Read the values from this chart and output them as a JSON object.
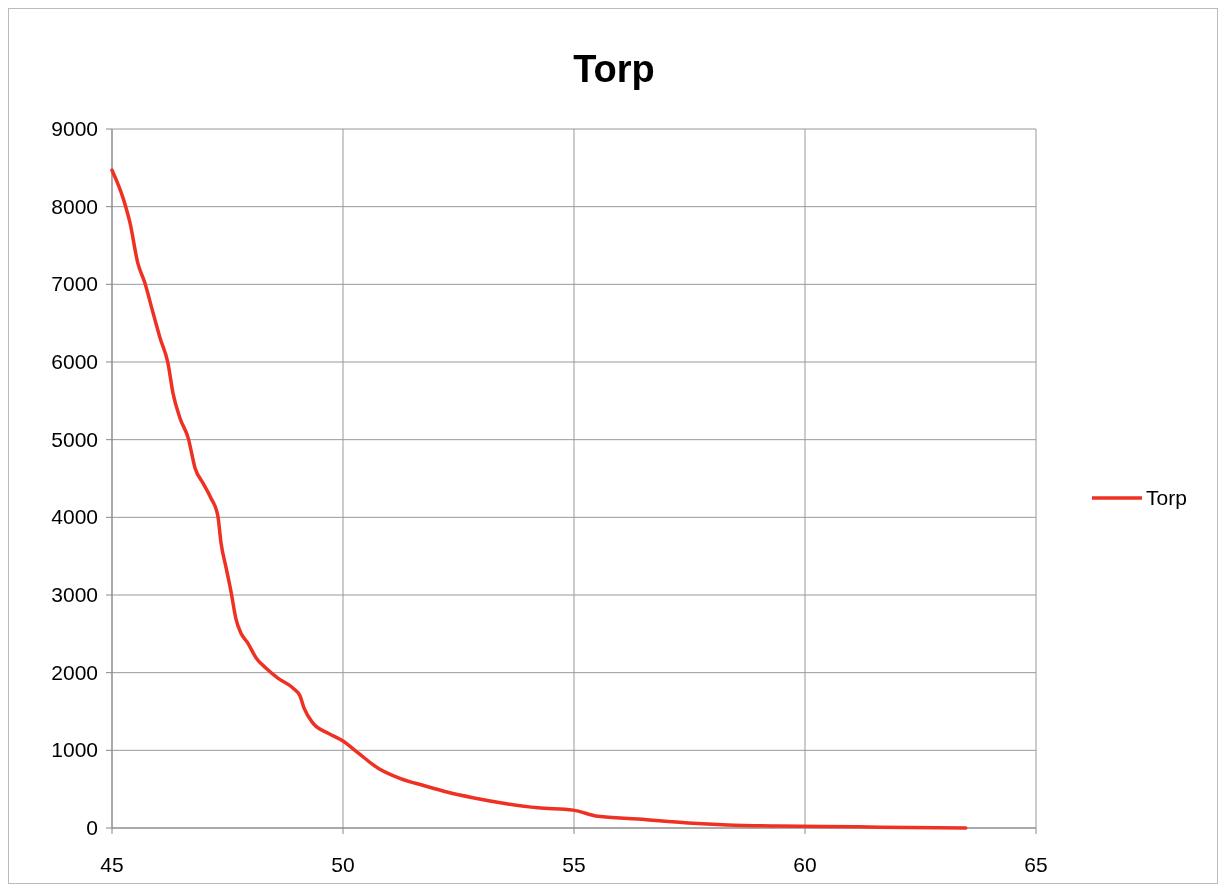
{
  "chart_data": {
    "type": "line",
    "title": "Torp",
    "xlim": [
      45,
      65
    ],
    "xticks": [
      45,
      50,
      55,
      60,
      65
    ],
    "ylim": [
      0,
      9000
    ],
    "yticks": [
      0,
      1000,
      2000,
      3000,
      4000,
      5000,
      6000,
      7000,
      8000,
      9000
    ],
    "grid": true,
    "legend": "right",
    "marker": "none",
    "line_style": "solid",
    "series": [
      {
        "name": "Torp",
        "color": "#ef3124",
        "x": [
          45.0,
          45.24,
          45.39,
          45.56,
          45.71,
          45.89,
          46.04,
          46.21,
          46.32,
          46.47,
          46.65,
          46.8,
          46.97,
          47.14,
          47.29,
          47.36,
          47.47,
          47.58,
          47.68,
          47.79,
          47.94,
          48.12,
          48.33,
          48.59,
          48.92,
          49.07,
          49.16,
          49.35,
          49.68,
          50.0,
          50.32,
          50.76,
          51.23,
          51.73,
          52.27,
          52.81,
          53.57,
          54.22,
          54.98,
          55.52,
          56.39,
          57.47,
          58.33,
          59.42,
          61.15,
          62.23,
          63.48
        ],
        "values": [
          8470,
          8110,
          7790,
          7270,
          7020,
          6630,
          6310,
          5990,
          5600,
          5280,
          5020,
          4630,
          4440,
          4250,
          4020,
          3670,
          3350,
          3030,
          2700,
          2510,
          2380,
          2190,
          2060,
          1930,
          1800,
          1700,
          1540,
          1350,
          1220,
          1120,
          970,
          770,
          640,
          550,
          460,
          390,
          310,
          260,
          230,
          150,
          115,
          65,
          40,
          25,
          15,
          5,
          0
        ]
      }
    ]
  }
}
